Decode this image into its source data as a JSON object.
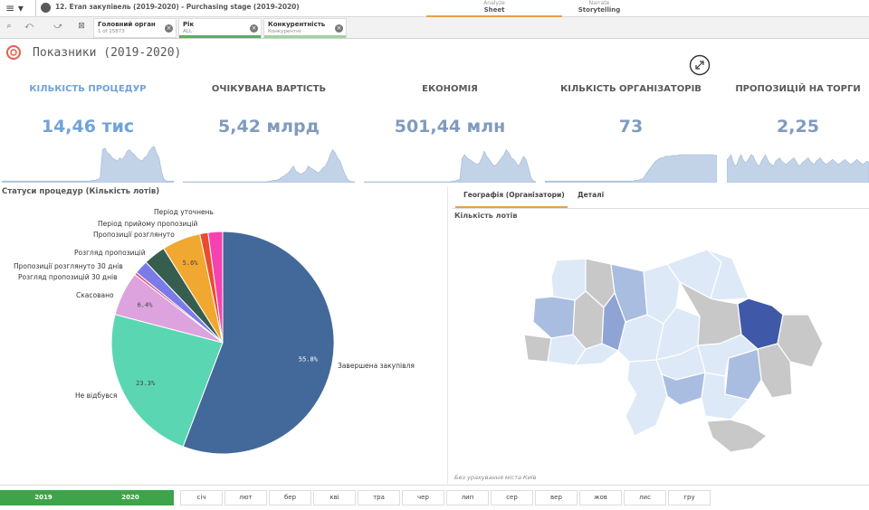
{
  "topbar": {
    "menu": "≡ ▾",
    "title": "12. Етап закупівель (2019-2020) - Purchasing stage (2019-2020)",
    "tabs": [
      {
        "small": "Analyze",
        "label": "Sheet"
      },
      {
        "small": "Narrate",
        "label": "Storytelling"
      }
    ]
  },
  "selections": [
    {
      "title": "Головний орган",
      "sub": "1 of 15873",
      "bar_color": "#ffffff"
    },
    {
      "title": "Рік",
      "sub": "ALL",
      "bar_color": "#52b35a"
    },
    {
      "title": "Конкурентність",
      "sub": "Конкурентні",
      "bar_color": "#9fd49d"
    }
  ],
  "sheet": {
    "title": "Показники (2019-2020)"
  },
  "kpis": [
    {
      "label": "КІЛЬКІСТЬ ПРОЦЕДУР",
      "value": "14,46 тис",
      "label_color": "#6fa3d9",
      "value_color": "#6fa3d9",
      "spark": [
        2,
        2,
        2,
        2,
        2,
        2,
        2,
        2,
        2,
        2,
        2,
        2,
        2,
        2,
        2,
        2,
        2,
        2,
        2,
        2,
        2,
        2,
        2,
        2,
        2,
        2,
        2,
        2,
        2,
        2,
        2,
        2,
        2,
        2,
        2,
        2,
        2,
        3,
        3,
        4,
        5,
        40,
        42,
        36,
        34,
        30,
        28,
        26,
        30,
        28,
        32,
        38,
        40,
        36,
        34,
        30,
        28,
        26,
        30,
        32,
        38,
        42,
        44,
        36,
        30,
        14,
        4,
        2,
        2,
        2,
        2
      ]
    },
    {
      "label": "ОЧІКУВАНА ВАРТІСТЬ",
      "value": "5,42 млрд",
      "label_color": "#595959",
      "value_color": "#7f9bbd",
      "spark": [
        1,
        1,
        1,
        1,
        1,
        1,
        1,
        1,
        1,
        1,
        1,
        1,
        1,
        1,
        1,
        1,
        1,
        1,
        1,
        1,
        1,
        1,
        1,
        1,
        1,
        1,
        1,
        1,
        1,
        1,
        1,
        1,
        1,
        1,
        1,
        2,
        2,
        3,
        3,
        4,
        6,
        8,
        10,
        12,
        16,
        20,
        14,
        12,
        10,
        12,
        14,
        20,
        18,
        16,
        14,
        12,
        14,
        18,
        20,
        26,
        34,
        40,
        36,
        30,
        26,
        18,
        10,
        4,
        2,
        1,
        1
      ]
    },
    {
      "label": "ЕКОНОМІЯ",
      "value": "501,44 млн",
      "label_color": "#595959",
      "value_color": "#7f9bbd",
      "spark": [
        1,
        1,
        1,
        1,
        1,
        1,
        1,
        1,
        1,
        1,
        1,
        1,
        1,
        1,
        1,
        1,
        1,
        1,
        1,
        1,
        1,
        1,
        1,
        1,
        1,
        1,
        1,
        1,
        1,
        1,
        1,
        1,
        1,
        1,
        1,
        1,
        2,
        2,
        3,
        4,
        30,
        34,
        30,
        28,
        26,
        24,
        22,
        24,
        30,
        38,
        32,
        28,
        24,
        20,
        22,
        26,
        30,
        34,
        40,
        36,
        30,
        28,
        24,
        20,
        26,
        32,
        28,
        18,
        6,
        2,
        1
      ]
    },
    {
      "label": "КІЛЬКІСТЬ ОРГАНІЗАТОРІВ",
      "value": "73",
      "label_color": "#595959",
      "value_color": "#7f9bbd",
      "spark": [
        2,
        2,
        2,
        2,
        2,
        2,
        2,
        2,
        2,
        2,
        2,
        2,
        2,
        2,
        2,
        2,
        2,
        2,
        2,
        2,
        2,
        2,
        2,
        2,
        2,
        2,
        2,
        2,
        2,
        2,
        2,
        2,
        2,
        2,
        2,
        2,
        2,
        3,
        3,
        4,
        5,
        10,
        14,
        18,
        22,
        26,
        28,
        30,
        30,
        32,
        32,
        32,
        33,
        33,
        33,
        34,
        34,
        34,
        34,
        34,
        34,
        34,
        34,
        34,
        34,
        34,
        34,
        34,
        34,
        33,
        33
      ]
    },
    {
      "label": "ПРОПОЗИЦІЙ НА ТОРГИ",
      "value": "2,25",
      "label_color": "#595959",
      "value_color": "#7f9bbd",
      "spark": [
        28,
        30,
        34,
        26,
        20,
        22,
        30,
        34,
        28,
        24,
        26,
        30,
        34,
        32,
        26,
        22,
        20,
        26,
        30,
        34,
        28,
        24,
        22,
        20,
        26,
        28,
        30,
        26,
        24,
        22,
        24,
        26,
        28,
        30,
        26,
        22,
        20,
        24,
        26,
        28,
        30,
        26,
        24,
        22,
        26,
        28,
        30,
        26,
        24,
        22,
        24,
        26,
        28,
        26,
        24,
        22,
        24,
        26,
        28,
        26,
        24,
        22,
        24,
        26,
        28,
        26,
        24,
        22,
        24,
        26,
        24
      ]
    }
  ],
  "pie": {
    "title": "Статуси процедур (Кількість лотів)"
  },
  "chart_data": {
    "type": "pie",
    "title": "Статуси процедур (Кількість лотів)",
    "slices": [
      {
        "label": "Завершена закупівля",
        "value": 55.8,
        "color": "#42699a",
        "pct_label": "55.8%"
      },
      {
        "label": "Не відбувся",
        "value": 23.3,
        "color": "#5ad6b3",
        "pct_label": "23.3%"
      },
      {
        "label": "Скасовано",
        "value": 6.4,
        "color": "#dda3de",
        "pct_label": "6.4%"
      },
      {
        "label": "Розгляд пропозицій 30 днів",
        "value": 0.4,
        "color": "#e05a80",
        "pct_label": ""
      },
      {
        "label": "Пропозиції розглянуто 30 днів",
        "value": 2.0,
        "color": "#7b7be8",
        "pct_label": ""
      },
      {
        "label": "Розгляд пропозицій",
        "value": 3.2,
        "color": "#355e4f",
        "pct_label": ""
      },
      {
        "label": "Пропозиції розглянуто",
        "value": 5.6,
        "color": "#f0a830",
        "pct_label": "5.6%"
      },
      {
        "label": "Період прийому пропозицій",
        "value": 1.2,
        "color": "#ec4c2e",
        "pct_label": ""
      },
      {
        "label": "Період уточнень",
        "value": 2.1,
        "color": "#f542b0",
        "pct_label": ""
      }
    ]
  },
  "geo": {
    "tabs": [
      "Географія (Організатори)",
      "Деталі"
    ],
    "title": "Кількість лотів",
    "note": "Без урахування міста Київ"
  },
  "years": [
    "2019",
    "2020"
  ],
  "months": [
    "січ",
    "лют",
    "бер",
    "кві",
    "тра",
    "чер",
    "лип",
    "сер",
    "вер",
    "жов",
    "лис",
    "гру"
  ],
  "icons": {
    "menu": "menu-icon",
    "sheet": "qlik-logo-icon",
    "fullscreen": "fullscreen-icon"
  }
}
